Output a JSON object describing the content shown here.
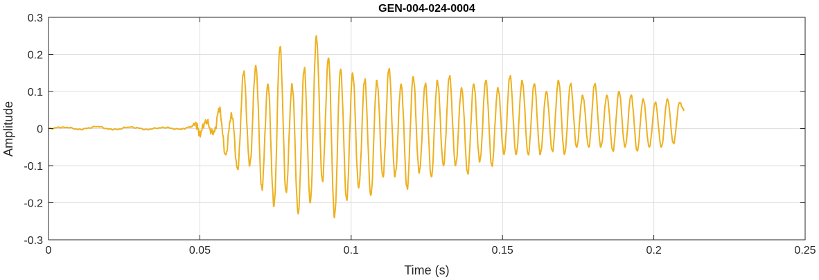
{
  "chart_data": {
    "type": "line",
    "title": "GEN-004-024-0004",
    "xlabel": "Time (s)",
    "ylabel": "Amplitude",
    "xlim": [
      0,
      0.25
    ],
    "ylim": [
      -0.3,
      0.3
    ],
    "xticks": [
      0,
      0.05,
      0.1,
      0.15,
      0.2,
      0.25
    ],
    "xtick_labels": [
      "0",
      "0.05",
      "0.1",
      "0.15",
      "0.2",
      "0.25"
    ],
    "yticks": [
      -0.3,
      -0.2,
      -0.1,
      0,
      0.1,
      0.2,
      0.3
    ],
    "ytick_labels": [
      "-0.3",
      "-0.2",
      "-0.1",
      "0",
      "0.1",
      "0.2",
      "0.3"
    ],
    "grid": true,
    "box": true,
    "series": [
      {
        "color": "#EDB120",
        "signal_end": 0.21,
        "x": [
          0,
          0.005,
          0.0105,
          0.016,
          0.0215,
          0.027,
          0.0325,
          0.038,
          0.0435,
          0.047,
          0.0485,
          0.05,
          0.052,
          0.0545,
          0.0565,
          0.0585,
          0.0605,
          0.0625,
          0.0645,
          0.0665,
          0.0685,
          0.0705,
          0.0725,
          0.0745,
          0.0765,
          0.0785,
          0.0805,
          0.0825,
          0.0845,
          0.0865,
          0.0885,
          0.0905,
          0.0925,
          0.0945,
          0.0965,
          0.0985,
          0.1005,
          0.1025,
          0.1045,
          0.1065,
          0.1085,
          0.1105,
          0.1125,
          0.1145,
          0.1165,
          0.1185,
          0.1205,
          0.1225,
          0.1245,
          0.1265,
          0.1285,
          0.1305,
          0.1325,
          0.1345,
          0.1365,
          0.1385,
          0.1405,
          0.1425,
          0.1445,
          0.1465,
          0.1485,
          0.1505,
          0.1525,
          0.1545,
          0.1565,
          0.1585,
          0.1605,
          0.1625,
          0.1645,
          0.1665,
          0.1685,
          0.1705,
          0.1725,
          0.1745,
          0.1765,
          0.1785,
          0.1805,
          0.1825,
          0.1845,
          0.1865,
          0.1885,
          0.1905,
          0.1925,
          0.1945,
          0.1965,
          0.1985,
          0.2005,
          0.2025,
          0.2045,
          0.2065,
          0.2085,
          0.21
        ],
        "y": [
          0.0,
          0.004,
          -0.002,
          0.005,
          -0.003,
          0.004,
          -0.002,
          0.003,
          -0.002,
          0.004,
          0.015,
          -0.012,
          0.02,
          -0.015,
          0.05,
          -0.07,
          0.04,
          -0.11,
          0.15,
          -0.1,
          0.17,
          -0.16,
          0.12,
          -0.21,
          0.22,
          -0.17,
          0.12,
          -0.23,
          0.16,
          -0.2,
          0.25,
          -0.14,
          0.19,
          -0.24,
          0.16,
          -0.19,
          0.15,
          -0.16,
          0.13,
          -0.18,
          0.13,
          -0.13,
          0.16,
          -0.13,
          0.12,
          -0.16,
          0.14,
          -0.12,
          0.12,
          -0.13,
          0.13,
          -0.1,
          0.14,
          -0.1,
          0.11,
          -0.12,
          0.12,
          -0.09,
          0.13,
          -0.1,
          0.11,
          -0.07,
          0.14,
          -0.07,
          0.13,
          -0.07,
          0.12,
          -0.07,
          0.1,
          -0.06,
          0.13,
          -0.07,
          0.12,
          -0.05,
          0.09,
          -0.05,
          0.12,
          -0.05,
          0.09,
          -0.06,
          0.1,
          -0.05,
          0.09,
          -0.06,
          0.08,
          -0.05,
          0.07,
          -0.05,
          0.08,
          -0.04,
          0.07,
          0.05
        ]
      }
    ]
  }
}
